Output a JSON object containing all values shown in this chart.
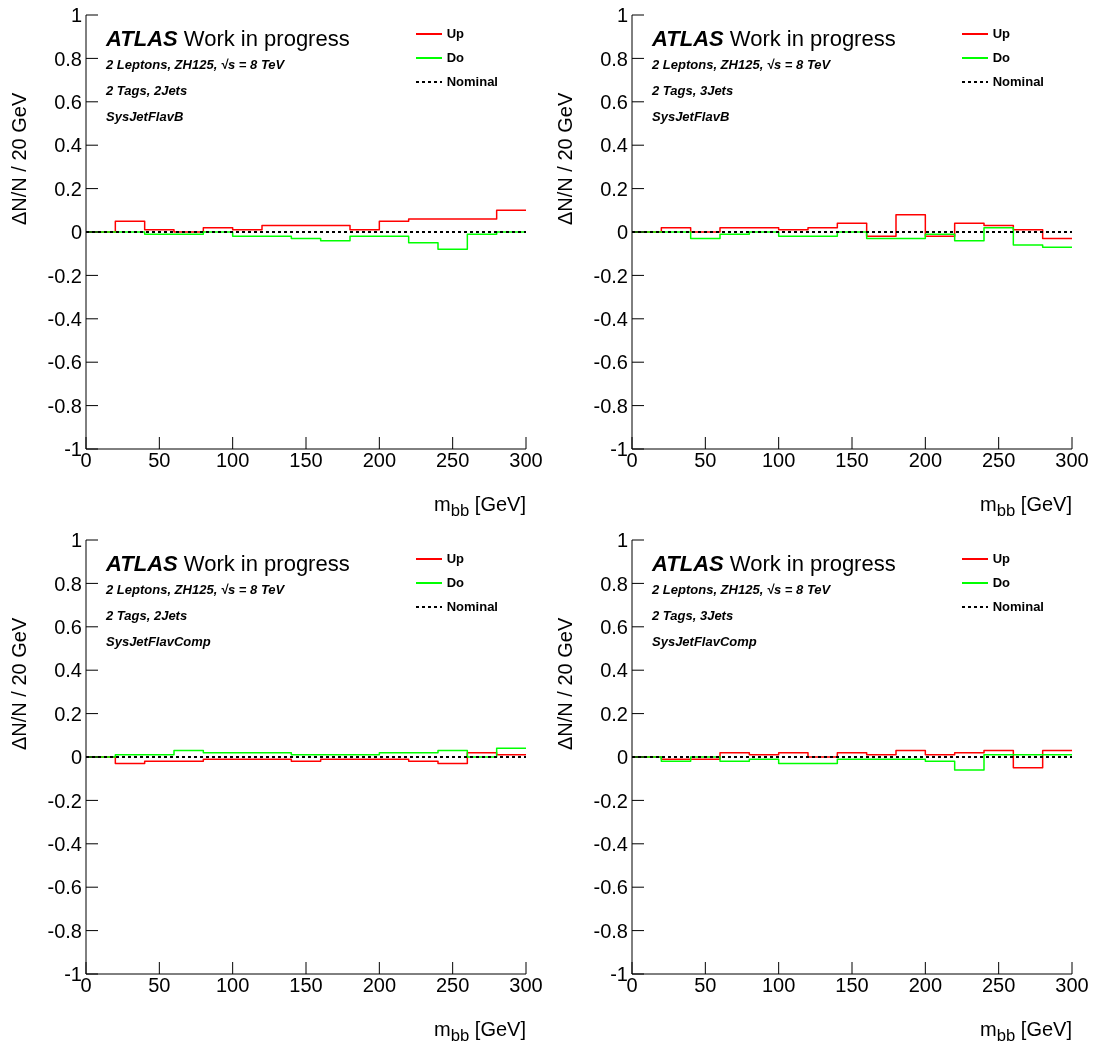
{
  "chart_data": [
    {
      "type": "histogram",
      "xlabel": "m$_{bb}$ [GeV]",
      "ylabel": "ΔN/N / 20 GeV",
      "annotations": [
        "ATLAS Work in progress",
        "2 Leptons, ZH125, √s = 8 TeV",
        "2 Tags, 2Jets",
        "SysJetFlavB"
      ],
      "bins": [
        0,
        20,
        40,
        60,
        80,
        100,
        120,
        140,
        160,
        180,
        200,
        220,
        240,
        260,
        280,
        300
      ],
      "series": [
        {
          "name": "Up",
          "color": "#ff0000",
          "line_style": "solid",
          "values": [
            0,
            0.05,
            0.01,
            0,
            0.02,
            0.01,
            0.03,
            0.03,
            0.03,
            0.01,
            0.05,
            0.06,
            0.06,
            0.06,
            0.1
          ]
        },
        {
          "name": "Do",
          "color": "#00ff00",
          "line_style": "solid",
          "values": [
            0,
            0,
            -0.01,
            -0.01,
            0,
            -0.02,
            -0.02,
            -0.03,
            -0.04,
            -0.02,
            -0.02,
            -0.05,
            -0.08,
            -0.01,
            0
          ]
        },
        {
          "name": "Nominal",
          "color": "#000000",
          "line_style": "dotted",
          "values": [
            0,
            0,
            0,
            0,
            0,
            0,
            0,
            0,
            0,
            0,
            0,
            0,
            0,
            0,
            0
          ]
        }
      ],
      "xlim": [
        0,
        300
      ],
      "xticks": [
        0,
        50,
        100,
        150,
        200,
        250,
        300
      ],
      "ylim": [
        -1,
        1
      ],
      "yticks": [
        -1,
        -0.8,
        -0.6,
        -0.4,
        -0.2,
        0,
        0.2,
        0.4,
        0.6,
        0.8,
        1
      ],
      "legend": "top right",
      "grid": false
    },
    {
      "type": "histogram",
      "xlabel": "m$_{bb}$ [GeV]",
      "ylabel": "ΔN/N / 20 GeV",
      "annotations": [
        "ATLAS Work in progress",
        "2 Leptons, ZH125, √s = 8 TeV",
        "2 Tags, 3Jets",
        "SysJetFlavB"
      ],
      "bins": [
        0,
        20,
        40,
        60,
        80,
        100,
        120,
        140,
        160,
        180,
        200,
        220,
        240,
        260,
        280,
        300
      ],
      "series": [
        {
          "name": "Up",
          "color": "#ff0000",
          "line_style": "solid",
          "values": [
            0,
            0.02,
            0,
            0.02,
            0.02,
            0.01,
            0.02,
            0.04,
            -0.02,
            0.08,
            -0.02,
            0.04,
            0.03,
            0.01,
            -0.03
          ]
        },
        {
          "name": "Do",
          "color": "#00ff00",
          "line_style": "solid",
          "values": [
            0,
            0,
            -0.03,
            -0.01,
            0,
            -0.02,
            -0.02,
            0,
            -0.03,
            -0.03,
            -0.01,
            -0.04,
            0.02,
            -0.06,
            -0.07
          ]
        },
        {
          "name": "Nominal",
          "color": "#000000",
          "line_style": "dotted",
          "values": [
            0,
            0,
            0,
            0,
            0,
            0,
            0,
            0,
            0,
            0,
            0,
            0,
            0,
            0,
            0
          ]
        }
      ],
      "xlim": [
        0,
        300
      ],
      "xticks": [
        0,
        50,
        100,
        150,
        200,
        250,
        300
      ],
      "ylim": [
        -1,
        1
      ],
      "yticks": [
        -1,
        -0.8,
        -0.6,
        -0.4,
        -0.2,
        0,
        0.2,
        0.4,
        0.6,
        0.8,
        1
      ],
      "legend": "top right",
      "grid": false
    },
    {
      "type": "histogram",
      "xlabel": "m$_{bb}$ [GeV]",
      "ylabel": "ΔN/N / 20 GeV",
      "annotations": [
        "ATLAS Work in progress",
        "2 Leptons, ZH125, √s = 8 TeV",
        "2 Tags, 2Jets",
        "SysJetFlavComp"
      ],
      "bins": [
        0,
        20,
        40,
        60,
        80,
        100,
        120,
        140,
        160,
        180,
        200,
        220,
        240,
        260,
        280,
        300
      ],
      "series": [
        {
          "name": "Up",
          "color": "#ff0000",
          "line_style": "solid",
          "values": [
            0,
            -0.03,
            -0.02,
            -0.02,
            -0.01,
            -0.01,
            -0.01,
            -0.02,
            -0.01,
            -0.01,
            -0.01,
            -0.02,
            -0.03,
            0.02,
            0.01
          ]
        },
        {
          "name": "Do",
          "color": "#00ff00",
          "line_style": "solid",
          "values": [
            0,
            0.01,
            0.01,
            0.03,
            0.02,
            0.02,
            0.02,
            0.01,
            0.01,
            0.01,
            0.02,
            0.02,
            0.03,
            0,
            0.04
          ]
        },
        {
          "name": "Nominal",
          "color": "#000000",
          "line_style": "dotted",
          "values": [
            0,
            0,
            0,
            0,
            0,
            0,
            0,
            0,
            0,
            0,
            0,
            0,
            0,
            0,
            0
          ]
        }
      ],
      "xlim": [
        0,
        300
      ],
      "xticks": [
        0,
        50,
        100,
        150,
        200,
        250,
        300
      ],
      "ylim": [
        -1,
        1
      ],
      "yticks": [
        -1,
        -0.8,
        -0.6,
        -0.4,
        -0.2,
        0,
        0.2,
        0.4,
        0.6,
        0.8,
        1
      ],
      "legend": "top right",
      "grid": false
    },
    {
      "type": "histogram",
      "xlabel": "m$_{bb}$ [GeV]",
      "ylabel": "ΔN/N / 20 GeV",
      "annotations": [
        "ATLAS Work in progress",
        "2 Leptons, ZH125, √s = 8 TeV",
        "2 Tags, 3Jets",
        "SysJetFlavComp"
      ],
      "bins": [
        0,
        20,
        40,
        60,
        80,
        100,
        120,
        140,
        160,
        180,
        200,
        220,
        240,
        260,
        280,
        300
      ],
      "series": [
        {
          "name": "Up",
          "color": "#ff0000",
          "line_style": "solid",
          "values": [
            0,
            -0.01,
            -0.01,
            0.02,
            0.01,
            0.02,
            0,
            0.02,
            0.01,
            0.03,
            0.01,
            0.02,
            0.03,
            -0.05,
            0.03
          ]
        },
        {
          "name": "Do",
          "color": "#00ff00",
          "line_style": "solid",
          "values": [
            0,
            -0.02,
            0,
            -0.02,
            -0.01,
            -0.03,
            -0.03,
            -0.01,
            -0.01,
            -0.01,
            -0.02,
            -0.06,
            0.01,
            0.01,
            0.01
          ]
        },
        {
          "name": "Nominal",
          "color": "#000000",
          "line_style": "dotted",
          "values": [
            0,
            0,
            0,
            0,
            0,
            0,
            0,
            0,
            0,
            0,
            0,
            0,
            0,
            0,
            0
          ]
        }
      ],
      "xlim": [
        0,
        300
      ],
      "xticks": [
        0,
        50,
        100,
        150,
        200,
        250,
        300
      ],
      "ylim": [
        -1,
        1
      ],
      "yticks": [
        -1,
        -0.8,
        -0.6,
        -0.4,
        -0.2,
        0,
        0.2,
        0.4,
        0.6,
        0.8,
        1
      ],
      "legend": "top right",
      "grid": false
    }
  ]
}
